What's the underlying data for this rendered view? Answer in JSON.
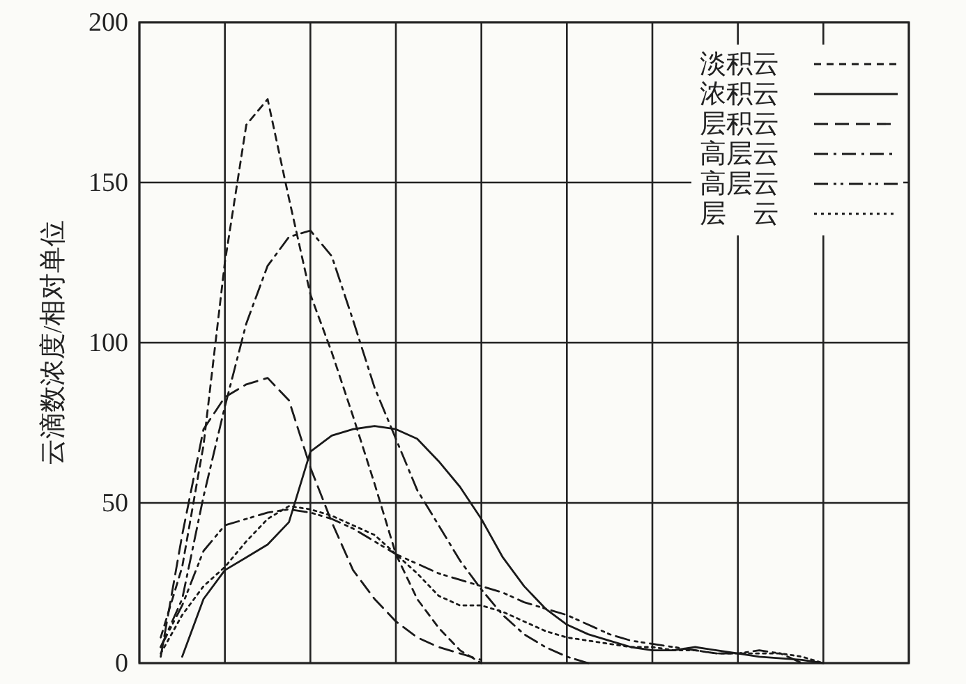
{
  "chart_data": {
    "type": "line",
    "ylabel": "云滴数浓度/相对单位",
    "categories": [
      null,
      null,
      null,
      null,
      null,
      null,
      null,
      null,
      null,
      null,
      null,
      null,
      null,
      null,
      null,
      null,
      null,
      null,
      null,
      null,
      null,
      null,
      null,
      null,
      null,
      null,
      null,
      null,
      null,
      null,
      null,
      null,
      null,
      null,
      null,
      null,
      null
    ],
    "ylim": [
      0,
      200
    ],
    "yticks": [
      0,
      50,
      100,
      150,
      200
    ],
    "grid": true,
    "legend": "top right",
    "marker": "none",
    "series": [
      {
        "name": "淡积云",
        "color": "#1a1a1a",
        "line_style": "dashed",
        "values": [
          null,
          8,
          30,
          68,
          125,
          168,
          176,
          145,
          115,
          97,
          77,
          56,
          34,
          20,
          11,
          4,
          0,
          null,
          null,
          null,
          null,
          null,
          null,
          null,
          null,
          null,
          null,
          null,
          null,
          null,
          null,
          null,
          null,
          null,
          null,
          null,
          null
        ]
      },
      {
        "name": "浓积云",
        "color": "#1a1a1a",
        "line_style": "solid",
        "values": [
          null,
          null,
          2,
          20,
          29,
          33,
          37,
          44,
          66,
          71,
          73,
          74,
          73,
          70,
          63,
          55,
          45,
          33,
          24,
          17,
          12,
          9,
          7,
          5,
          4,
          4,
          5,
          4,
          3,
          2,
          1.5,
          1,
          0,
          null,
          null,
          null,
          null
        ]
      },
      {
        "name": "层积云",
        "color": "#1a1a1a",
        "line_style": "longdash",
        "values": [
          null,
          2,
          40,
          73,
          83,
          87,
          89,
          82,
          61,
          44,
          29,
          20,
          13,
          8,
          5,
          3,
          1,
          null,
          null,
          null,
          null,
          null,
          null,
          null,
          null,
          null,
          null,
          null,
          null,
          null,
          null,
          null,
          null,
          null,
          null,
          null,
          null
        ]
      },
      {
        "name": "高层云",
        "color": "#1a1a1a",
        "line_style": "dashdot",
        "values": [
          null,
          5,
          20,
          52,
          80,
          106,
          124,
          133,
          135,
          127,
          107,
          86,
          70,
          54,
          43,
          32,
          23,
          15,
          9,
          5,
          2,
          0,
          null,
          null,
          null,
          null,
          null,
          null,
          null,
          null,
          null,
          null,
          null,
          null,
          null,
          null,
          null
        ]
      },
      {
        "name": "高层云",
        "color": "#1a1a1a",
        "line_style": "dashdotdot",
        "values": [
          null,
          5,
          18,
          35,
          43,
          45,
          47,
          48,
          47,
          45,
          42,
          38,
          34,
          31,
          28,
          26,
          24,
          22,
          19,
          17,
          15,
          12,
          9,
          7,
          6,
          5,
          4,
          3,
          3,
          4,
          3,
          0,
          null,
          null,
          null,
          null,
          null
        ]
      },
      {
        "name": "层　云",
        "color": "#1a1a1a",
        "line_style": "dotted",
        "values": [
          null,
          3,
          15,
          24,
          30,
          38,
          45,
          49,
          48,
          46,
          43,
          40,
          34,
          28,
          21,
          18,
          18,
          16,
          13,
          10,
          8,
          7,
          6,
          5,
          5,
          4,
          4,
          3,
          3,
          3,
          3,
          2,
          0,
          null,
          null,
          null,
          null
        ]
      }
    ]
  }
}
